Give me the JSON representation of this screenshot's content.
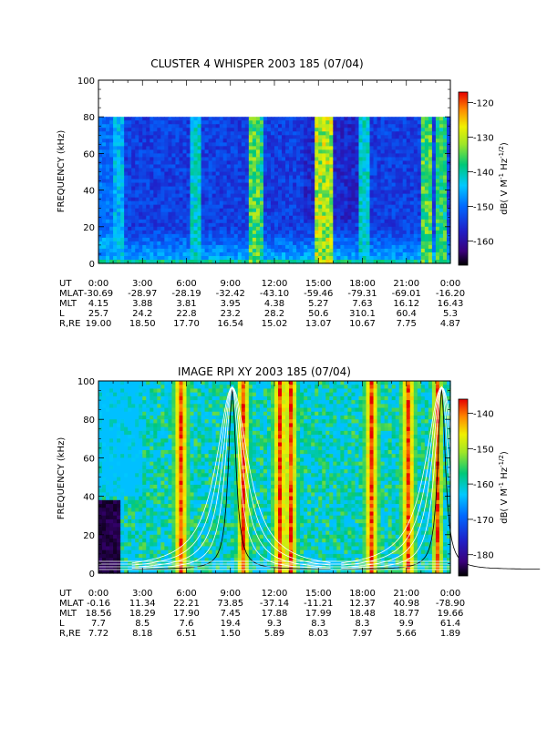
{
  "chart_data": [
    {
      "type": "heatmap",
      "title": "CLUSTER 4 WHISPER 2003 185 (07/04)",
      "ylabel": "FREQUENCY (kHz)",
      "ylim": [
        0,
        100
      ],
      "yticks": [
        "0",
        "20",
        "40",
        "60",
        "80",
        "100"
      ],
      "data_top_khz": 80,
      "colorbar": {
        "label": "dB( V M^-1 Hz^-1/2)",
        "label_main": "dB( V M",
        "label_exp1": "-1",
        "label_mid": " Hz",
        "label_exp2": "-1/2",
        "label_end": ")",
        "range": [
          -167,
          -117
        ],
        "ticks": [
          "-120",
          "-130",
          "-140",
          "-150",
          "-160"
        ]
      },
      "ephemeris": {
        "row_labels": [
          "UT",
          "MLAT",
          "MLT",
          "L",
          "R,RE"
        ],
        "columns": [
          [
            "0:00",
            "-30.69",
            "4.15",
            "25.7",
            "19.00"
          ],
          [
            "3:00",
            "-28.97",
            "3.88",
            "24.2",
            "18.50"
          ],
          [
            "6:00",
            "-28.19",
            "3.81",
            "22.8",
            "17.70"
          ],
          [
            "9:00",
            "-32.42",
            "3.95",
            "23.2",
            "16.54"
          ],
          [
            "12:00",
            "-43.10",
            "4.38",
            "28.2",
            "15.02"
          ],
          [
            "15:00",
            "-59.46",
            "5.27",
            "50.6",
            "13.07"
          ],
          [
            "18:00",
            "-79.31",
            "7.63",
            "310.1",
            "10.67"
          ],
          [
            "21:00",
            "-69.01",
            "16.12",
            "60.4",
            "7.75"
          ],
          [
            "0:00",
            "-16.20",
            "16.43",
            "5.3",
            "4.87"
          ]
        ]
      }
    },
    {
      "type": "heatmap",
      "title": "IMAGE RPI XY 2003 185 (07/04)",
      "ylabel": "FREQUENCY (kHz)",
      "ylim": [
        0,
        100
      ],
      "yticks": [
        "0",
        "20",
        "40",
        "60",
        "80",
        "100"
      ],
      "data_top_khz": 100,
      "colorbar": {
        "label": "dB( V M^-1 Hz^-1/2)",
        "label_main": "dB( V M",
        "label_exp1": "-1",
        "label_mid": " Hz",
        "label_exp2": "-1/2",
        "label_end": ")",
        "range": [
          -186,
          -136
        ],
        "ticks": [
          "-140",
          "-150",
          "-160",
          "-170",
          "-180"
        ]
      },
      "ephemeris": {
        "row_labels": [
          "UT",
          "MLAT",
          "MLT",
          "L",
          "R,RE"
        ],
        "columns": [
          [
            "0:00",
            "-0.16",
            "18.56",
            "7.7",
            "7.72"
          ],
          [
            "3:00",
            "11.34",
            "18.29",
            "8.5",
            "8.18"
          ],
          [
            "6:00",
            "22.21",
            "17.90",
            "7.6",
            "6.51"
          ],
          [
            "9:00",
            "73.85",
            "7.45",
            "19.4",
            "1.50"
          ],
          [
            "12:00",
            "-37.14",
            "17.88",
            "9.3",
            "5.89"
          ],
          [
            "15:00",
            "-11.21",
            "17.99",
            "8.3",
            "8.03"
          ],
          [
            "18:00",
            "12.37",
            "18.48",
            "8.3",
            "7.97"
          ],
          [
            "21:00",
            "40.98",
            "18.77",
            "9.9",
            "5.66"
          ],
          [
            "0:00",
            "-78.90",
            "19.66",
            "61.4",
            "1.89"
          ]
        ]
      }
    }
  ]
}
